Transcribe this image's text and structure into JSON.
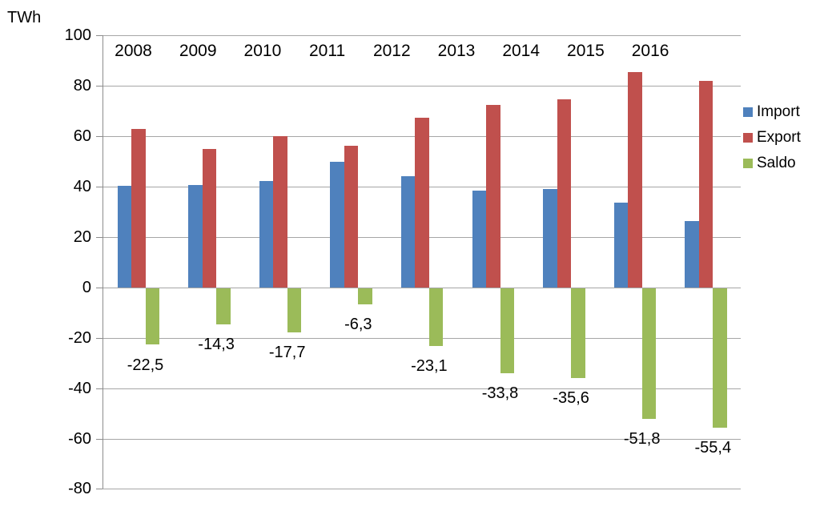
{
  "chart_data": {
    "type": "bar",
    "title": "",
    "unit_label": "TWh",
    "categories": [
      2008,
      2009,
      2010,
      2011,
      2012,
      2013,
      2014,
      2015,
      2016
    ],
    "series": [
      {
        "name": "Import",
        "color": "#4f81bd",
        "values": [
          40.2,
          40.6,
          42.2,
          49.7,
          44.2,
          38.4,
          38.9,
          33.6,
          26.4
        ]
      },
      {
        "name": "Export",
        "color": "#c0504d",
        "values": [
          62.7,
          54.9,
          59.9,
          56.0,
          67.3,
          72.2,
          74.5,
          85.4,
          81.8
        ]
      },
      {
        "name": "Saldo",
        "color": "#9bbb59",
        "values": [
          -22.5,
          -14.3,
          -17.7,
          -6.3,
          -23.1,
          -33.8,
          -35.6,
          -51.8,
          -55.4
        ],
        "data_labels": [
          "-22,5",
          "-14,3",
          "-17,7",
          "-6,3",
          "-23,1",
          "-33,8",
          "-35,6",
          "-51,8",
          "-55,4"
        ]
      }
    ],
    "y_ticks": [
      100,
      80,
      60,
      40,
      20,
      0,
      -20,
      -40,
      -60,
      -80
    ],
    "ylim": [
      -80,
      100
    ],
    "grid": true,
    "legend_position": "right",
    "grid_color": "#a6a6a6",
    "text_color": "#000000"
  }
}
